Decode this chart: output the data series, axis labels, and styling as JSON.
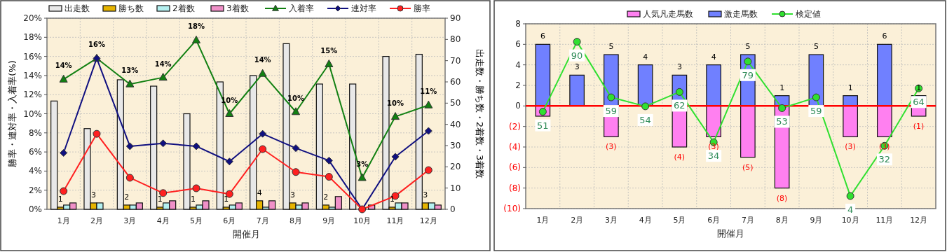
{
  "chart_data": [
    {
      "type": "bar",
      "xlabel": "開催月",
      "ylabel": "勝率・連対率・入着率(%)",
      "y2label": "出走数・勝ち数・2着数・3着数",
      "categories": [
        "1月",
        "2月",
        "3月",
        "4月",
        "5月",
        "6月",
        "7月",
        "8月",
        "9月",
        "10月",
        "11月",
        "12月"
      ],
      "series": [
        {
          "name": "出走数",
          "color": "#e8e8e8",
          "axis": "y2",
          "values": [
            51,
            38,
            61,
            58,
            45,
            60,
            63,
            78,
            59,
            59,
            72,
            73
          ]
        },
        {
          "name": "勝ち数",
          "color": "#e6b400",
          "axis": "y2",
          "values": [
            1,
            3,
            2,
            1,
            1,
            1,
            4,
            3,
            2,
            0,
            1,
            3
          ],
          "value_labels": [
            "1",
            "3",
            "2",
            "1",
            "1",
            "1",
            "4",
            "3",
            "2",
            null,
            "1",
            "3"
          ]
        },
        {
          "name": "2着数",
          "color": "#b4f0f0",
          "axis": "y2",
          "values": [
            2,
            3,
            2,
            3,
            2,
            2,
            1,
            2,
            1,
            0,
            3,
            3
          ]
        },
        {
          "name": "3着数",
          "color": "#f090c8",
          "axis": "y2",
          "values": [
            3,
            0,
            3,
            4,
            4,
            3,
            4,
            3,
            6,
            2,
            3,
            2
          ]
        },
        {
          "name": "入着率",
          "type": "line",
          "color": "#128012",
          "marker": "triangle",
          "values": [
            13.6,
            15.8,
            13.1,
            13.8,
            17.7,
            10.0,
            14.2,
            10.2,
            15.2,
            3.3,
            9.7,
            10.9
          ],
          "value_labels": [
            "14%",
            "16%",
            "13%",
            "14%",
            "18%",
            "10%",
            "14%",
            "10%",
            "15%",
            "3%",
            "10%",
            "11%"
          ]
        },
        {
          "name": "連対率",
          "type": "line",
          "color": "#101080",
          "marker": "diamond",
          "values": [
            5.9,
            15.8,
            6.6,
            6.9,
            6.6,
            5.0,
            7.9,
            6.4,
            5.1,
            0,
            5.5,
            8.2
          ]
        },
        {
          "name": "勝率",
          "type": "line",
          "color": "#ff2020",
          "marker": "circle",
          "values": [
            1.9,
            7.9,
            3.3,
            1.7,
            2.2,
            1.6,
            6.3,
            3.9,
            3.4,
            0,
            1.4,
            4.1
          ]
        }
      ],
      "ylim": [
        0,
        20
      ],
      "yticks": [
        {
          "value": 0,
          "label": "0%"
        },
        {
          "value": 2,
          "label": "2%"
        },
        {
          "value": 4,
          "label": "4%"
        },
        {
          "value": 6,
          "label": "6%"
        },
        {
          "value": 8,
          "label": "8%"
        },
        {
          "value": 10,
          "label": "10%"
        },
        {
          "value": 12,
          "label": "12%"
        },
        {
          "value": 14,
          "label": "14%"
        },
        {
          "value": 16,
          "label": "16%"
        },
        {
          "value": 18,
          "label": "18%"
        },
        {
          "value": 20,
          "label": "20%"
        }
      ],
      "y2lim": [
        0,
        90
      ],
      "y2ticks": [
        0,
        10,
        20,
        30,
        40,
        50,
        60,
        70,
        80,
        90
      ],
      "grid": true,
      "legend": "top"
    },
    {
      "type": "bar",
      "xlabel": "開催月",
      "stacked": true,
      "categories": [
        "1月",
        "2月",
        "3月",
        "4月",
        "5月",
        "6月",
        "7月",
        "8月",
        "9月",
        "10月",
        "11月",
        "12月"
      ],
      "series": [
        {
          "name": "人気凡走馬数",
          "color": "#ff80f0",
          "values": [
            -1,
            0,
            -3,
            0,
            -4,
            -3,
            -5,
            -8,
            0,
            -3,
            -3,
            -1
          ],
          "value_labels": [
            null,
            null,
            "(3)",
            null,
            "(4)",
            "(3)",
            "(5)",
            "(8)",
            null,
            "(3)",
            "(3)",
            "(1)"
          ]
        },
        {
          "name": "激走馬数",
          "color": "#7080ff",
          "values": [
            6,
            3,
            5,
            4,
            3,
            4,
            5,
            1,
            5,
            1,
            6,
            1
          ],
          "value_labels": [
            "6",
            "3",
            "5",
            "4",
            "3",
            "4",
            "5",
            "1",
            "5",
            "1",
            "6",
            "1"
          ]
        },
        {
          "name": "検定値",
          "type": "line",
          "color": "#30e030",
          "marker": "circle",
          "axis": "y2",
          "values": [
            51,
            90,
            59,
            54,
            62,
            34,
            79,
            53,
            59,
            4,
            32,
            64
          ],
          "value_labels": [
            "51",
            "90",
            "59",
            "54",
            "62",
            "34",
            "79",
            "53",
            "59",
            "4",
            "32",
            "64"
          ]
        }
      ],
      "ylim": [
        -10,
        8
      ],
      "yticks": [
        {
          "value": -10,
          "label": "(10)"
        },
        {
          "value": -8,
          "label": "(8)"
        },
        {
          "value": -6,
          "label": "(6)"
        },
        {
          "value": -4,
          "label": "(4)"
        },
        {
          "value": -2,
          "label": "(2)"
        },
        0,
        2,
        4,
        6,
        8
      ],
      "y2lim": [
        -3,
        100
      ],
      "ref_lines": [
        {
          "axis": "y",
          "value": 0,
          "color": "#ff0000"
        }
      ],
      "grid": true,
      "legend": "top"
    }
  ]
}
